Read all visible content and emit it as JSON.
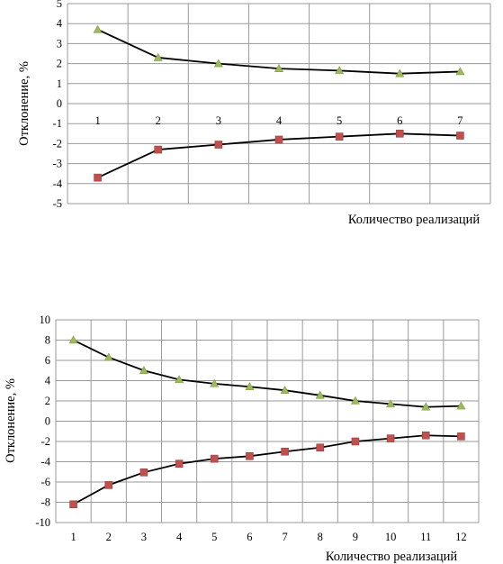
{
  "chart_data": [
    {
      "type": "line",
      "xlabel": "Количество реализаций",
      "ylabel": "Отклонение, %",
      "ylim": [
        -5,
        5
      ],
      "yticks": [
        -5,
        -4,
        -3,
        -2,
        -1,
        0,
        1,
        2,
        3,
        4,
        5
      ],
      "categories": [
        "1",
        "2",
        "3",
        "4",
        "5",
        "6",
        "7"
      ],
      "grid": true,
      "legend": "none",
      "series": [
        {
          "marker": "triangle",
          "color": "#9bbb59",
          "values": [
            3.7,
            2.3,
            2.0,
            1.75,
            1.65,
            1.5,
            1.6
          ]
        },
        {
          "marker": "square",
          "color": "#c0504d",
          "values": [
            -3.7,
            -2.3,
            -2.05,
            -1.8,
            -1.65,
            -1.5,
            -1.6
          ]
        }
      ]
    },
    {
      "type": "line",
      "xlabel": "Количество реализаций",
      "ylabel": "Отклонение, %",
      "ylim": [
        -10,
        10
      ],
      "yticks": [
        -10,
        -8,
        -6,
        -4,
        -2,
        0,
        2,
        4,
        6,
        8,
        10
      ],
      "categories": [
        "1",
        "2",
        "3",
        "4",
        "5",
        "6",
        "7",
        "8",
        "9",
        "10",
        "11",
        "12"
      ],
      "grid": true,
      "legend": "none",
      "series": [
        {
          "marker": "triangle",
          "color": "#9bbb59",
          "values": [
            8.0,
            6.3,
            5.0,
            4.1,
            3.7,
            3.4,
            3.05,
            2.55,
            2.0,
            1.7,
            1.4,
            1.5
          ]
        },
        {
          "marker": "square",
          "color": "#c0504d",
          "values": [
            -8.2,
            -6.3,
            -5.05,
            -4.2,
            -3.7,
            -3.45,
            -3.0,
            -2.6,
            -2.0,
            -1.7,
            -1.4,
            -1.5
          ]
        }
      ]
    }
  ]
}
